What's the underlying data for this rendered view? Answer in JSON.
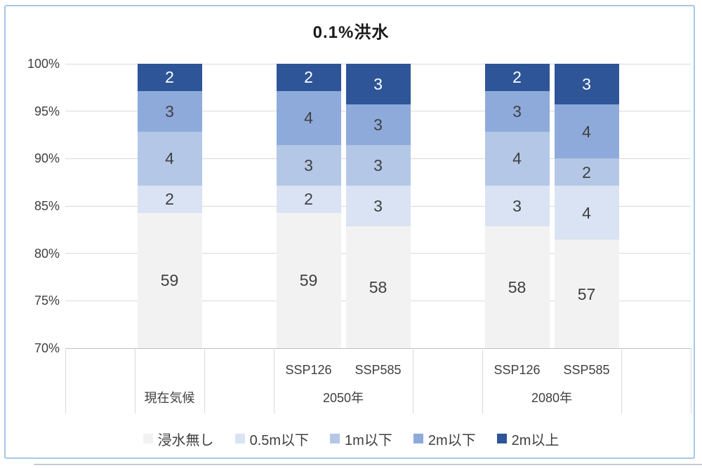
{
  "chart_data": {
    "type": "bar",
    "variant": "100-percent-stacked-column",
    "title": "0.1%洪水",
    "total_per_bar": 70,
    "y_axis": {
      "min": 70,
      "max": 100,
      "step": 5,
      "tick_labels": [
        "100%",
        "95%",
        "90%",
        "85%",
        "80%",
        "75%",
        "70%"
      ],
      "grid": true
    },
    "categories": [
      "現在気候",
      "2050年 SSP126",
      "2050年 SSP585",
      "2080年 SSP126",
      "2080年 SSP585"
    ],
    "series": [
      {
        "name": "浸水無し",
        "color": "#f2f2f2",
        "values": [
          59,
          59,
          58,
          58,
          57
        ]
      },
      {
        "name": "0.5m以下",
        "color": "#dae3f3",
        "values": [
          2,
          2,
          3,
          3,
          4
        ]
      },
      {
        "name": "1m以下",
        "color": "#b4c7e7",
        "values": [
          4,
          3,
          3,
          4,
          2
        ]
      },
      {
        "name": "2m以下",
        "color": "#8eaadb",
        "values": [
          3,
          4,
          3,
          3,
          4
        ]
      },
      {
        "name": "2m以上",
        "color": "#2e5597",
        "values": [
          2,
          2,
          3,
          2,
          3
        ]
      }
    ],
    "x_axis": {
      "sub_labels": [
        "",
        "SSP126",
        "SSP585",
        "SSP126",
        "SSP585"
      ],
      "groups": [
        {
          "label": "現在気候"
        },
        {
          "label": "2050年"
        },
        {
          "label": "2080年"
        }
      ]
    },
    "legend": {
      "position": "bottom",
      "entries": [
        "浸水無し",
        "0.5m以下",
        "1m以下",
        "2m以下",
        "2m以上"
      ]
    },
    "colors": {
      "frame_border": "#a9c6e5",
      "gridline": "#d9d9d9",
      "axis_text": "#3f3f3f",
      "dark_segment_text": "#ffffff"
    }
  }
}
